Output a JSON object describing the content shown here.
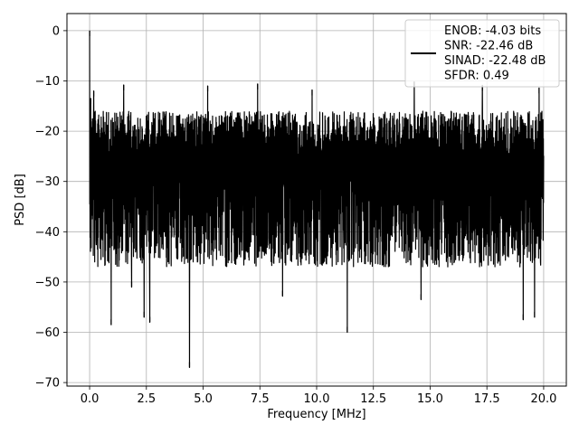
{
  "chart_data": {
    "type": "line",
    "title": "",
    "xlabel": "Frequency [MHz]",
    "ylabel": "PSD [dB]",
    "xlim": [
      -0.999,
      20.999
    ],
    "ylim": [
      -70.7,
      3.4
    ],
    "xticks": [
      0.0,
      2.5,
      5.0,
      7.5,
      10.0,
      12.5,
      15.0,
      17.5,
      20.0
    ],
    "xtick_labels": [
      "0.0",
      "2.5",
      "5.0",
      "7.5",
      "10.0",
      "12.5",
      "15.0",
      "17.5",
      "20.0"
    ],
    "yticks": [
      0,
      -10,
      -20,
      -30,
      -40,
      -50,
      -60,
      -70
    ],
    "ytick_labels": [
      "0",
      "−10",
      "−20",
      "−30",
      "−40",
      "−50",
      "−60",
      "−70"
    ],
    "grid": true,
    "legend_position": "top-right",
    "line_color": "#000000",
    "series": [
      {
        "legend_lines": [
          "ENOB: -4.03 bits",
          "SNR: -22.46 dB",
          "SINAD: -22.48 dB",
          "SFDR: 0.49"
        ],
        "noise_floor": {
          "x_range": [
            0.0,
            20.0
          ],
          "upper_envelope_db": -14,
          "lower_envelope_db": -39,
          "mean_db": -25
        },
        "peaks": [
          {
            "x": 0.0,
            "y": 0.0
          },
          {
            "x": 0.05,
            "y": -13.5
          },
          {
            "x": 0.18,
            "y": -12.0
          },
          {
            "x": 1.5,
            "y": -10.8
          },
          {
            "x": 5.2,
            "y": -11.0
          },
          {
            "x": 7.4,
            "y": -10.6
          },
          {
            "x": 9.8,
            "y": -11.8
          },
          {
            "x": 14.3,
            "y": -10.2
          },
          {
            "x": 17.3,
            "y": -10.9
          },
          {
            "x": 19.8,
            "y": -11.4
          }
        ],
        "notable_dips": [
          {
            "x": 0.95,
            "y": -58.5
          },
          {
            "x": 1.85,
            "y": -51.0
          },
          {
            "x": 2.4,
            "y": -57.0
          },
          {
            "x": 2.65,
            "y": -58.0
          },
          {
            "x": 4.4,
            "y": -67.0
          },
          {
            "x": 8.5,
            "y": -52.8
          },
          {
            "x": 11.35,
            "y": -60.0
          },
          {
            "x": 14.6,
            "y": -53.5
          },
          {
            "x": 19.1,
            "y": -57.5
          },
          {
            "x": 19.6,
            "y": -57.0
          }
        ]
      }
    ]
  }
}
